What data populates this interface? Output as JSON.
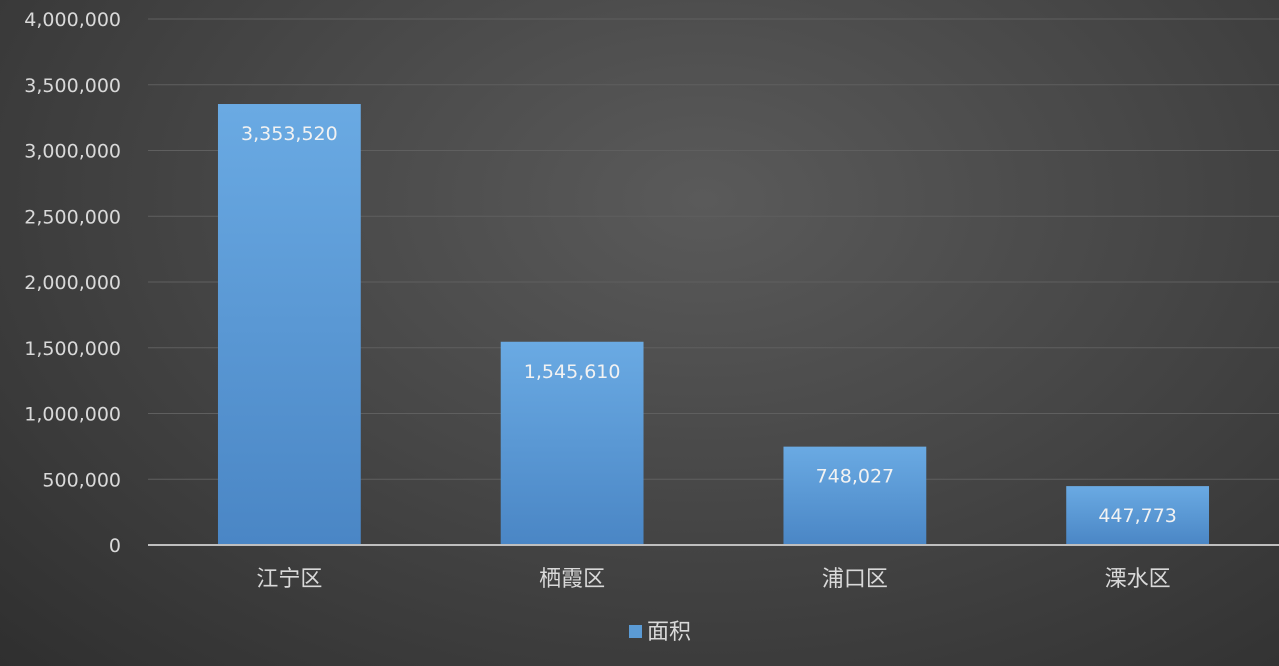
{
  "chart_data": {
    "type": "bar",
    "categories": [
      "江宁区",
      "栖霞区",
      "浦口区",
      "溧水区"
    ],
    "series": [
      {
        "name": "面积",
        "values": [
          3353520,
          1545610,
          748027,
          447773
        ],
        "color": "#5b9bd5"
      }
    ],
    "data_labels": [
      "3,353,520",
      "1,545,610",
      "748,027",
      "447,773"
    ],
    "ylim": [
      0,
      4000000
    ],
    "yticks": [
      0,
      500000,
      1000000,
      1500000,
      2000000,
      2500000,
      3000000,
      3500000,
      4000000
    ],
    "ytick_labels": [
      "0",
      "500,000",
      "1,000,000",
      "1,500,000",
      "2,000,000",
      "2,500,000",
      "3,000,000",
      "3,500,000",
      "4,000,000"
    ],
    "grid": true,
    "legend_position": "bottom",
    "background": "#404040",
    "gridline_color": "#5f5f5f",
    "axis_color": "#bfbfbf"
  }
}
